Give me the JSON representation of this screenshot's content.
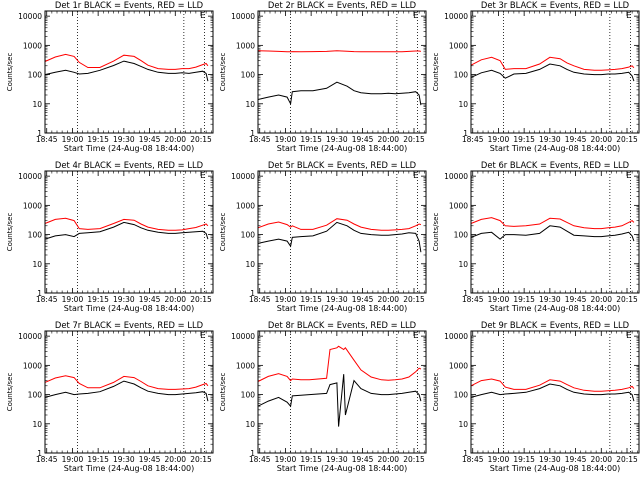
{
  "figure": {
    "xlabel": "Start Time (24-Aug-08 18:44:00)",
    "ylabel": "Counts/sec",
    "x_tick_labels": [
      "18:45",
      "19:00",
      "19:15",
      "19:30",
      "19:45",
      "20:00",
      "20:15"
    ],
    "y_tick_labels": [
      "1",
      "10",
      "100",
      "1000",
      "10000"
    ],
    "marker_labels": [
      "E"
    ],
    "colors": {
      "events": "#000000",
      "lld": "#ff0000",
      "axes": "#000000",
      "background": "#ffffff"
    }
  },
  "chart_data": [
    {
      "type": "line",
      "title": "Det 1r BLACK = Events, RED = LLD",
      "xlabel": "Start Time (24-Aug-08 18:44:00)",
      "ylabel": "Counts/sec",
      "x_unit": "minutes since 18:44:00",
      "xlim": [
        0,
        98
      ],
      "ylim": [
        1,
        15000
      ],
      "yscale": "log",
      "x": [
        0,
        6,
        12,
        17,
        20,
        25,
        32,
        40,
        46,
        52,
        56,
        60,
        66,
        72,
        76,
        80,
        84,
        88,
        92,
        94,
        95
      ],
      "vlines": [
        19,
        81,
        93
      ],
      "marker_label": "E",
      "marker_x": 92,
      "series": [
        {
          "name": "Events",
          "color": "#000000",
          "values": [
            100,
            120,
            140,
            120,
            105,
            110,
            140,
            205,
            290,
            240,
            190,
            150,
            120,
            110,
            110,
            115,
            110,
            120,
            130,
            110,
            60
          ]
        },
        {
          "name": "LLD",
          "color": "#ff0000",
          "values": [
            280,
            400,
            490,
            420,
            260,
            175,
            175,
            290,
            460,
            420,
            300,
            210,
            160,
            150,
            150,
            160,
            160,
            180,
            220,
            240,
            200
          ]
        }
      ]
    },
    {
      "type": "line",
      "title": "Det 2r BLACK = Events, RED = LLD",
      "xlabel": "Start Time (24-Aug-08 18:44:00)",
      "ylabel": "Counts/sec",
      "x_unit": "minutes since 18:44:00",
      "xlim": [
        0,
        98
      ],
      "ylim": [
        1,
        15000
      ],
      "yscale": "log",
      "x": [
        0,
        6,
        12,
        17,
        19,
        20,
        25,
        32,
        40,
        46,
        52,
        56,
        60,
        66,
        72,
        76,
        80,
        84,
        88,
        92,
        94,
        95
      ],
      "vlines": [
        19,
        81,
        93
      ],
      "marker_label": "E",
      "marker_x": 92,
      "series": [
        {
          "name": "Events",
          "color": "#000000",
          "values": [
            14,
            17,
            20,
            17,
            10,
            26,
            28,
            28,
            34,
            55,
            40,
            28,
            24,
            22,
            22,
            23,
            22,
            23,
            24,
            26,
            20,
            9
          ]
        },
        {
          "name": "LLD",
          "color": "#ff0000",
          "values": [
            650,
            640,
            620,
            600,
            600,
            610,
            600,
            610,
            620,
            650,
            630,
            610,
            600,
            600,
            600,
            600,
            600,
            600,
            620,
            640,
            640,
            620
          ]
        }
      ]
    },
    {
      "type": "line",
      "title": "Det 3r BLACK = Events, RED = LLD",
      "xlabel": "Start Time (24-Aug-08 18:44:00)",
      "ylabel": "Counts/sec",
      "x_unit": "minutes since 18:44:00",
      "xlim": [
        0,
        98
      ],
      "ylim": [
        1,
        15000
      ],
      "yscale": "log",
      "x": [
        0,
        6,
        12,
        17,
        20,
        25,
        32,
        40,
        46,
        52,
        56,
        60,
        66,
        72,
        76,
        80,
        84,
        88,
        92,
        94,
        95
      ],
      "vlines": [
        19,
        81,
        93
      ],
      "marker_label": "E",
      "marker_x": 92,
      "series": [
        {
          "name": "Events",
          "color": "#000000",
          "values": [
            80,
            115,
            140,
            110,
            75,
            105,
            110,
            150,
            230,
            200,
            150,
            120,
            105,
            100,
            100,
            105,
            105,
            110,
            120,
            90,
            60
          ]
        },
        {
          "name": "LLD",
          "color": "#ff0000",
          "values": [
            210,
            320,
            390,
            300,
            150,
            160,
            160,
            230,
            390,
            350,
            250,
            200,
            150,
            140,
            140,
            145,
            150,
            160,
            180,
            200,
            170
          ]
        }
      ]
    },
    {
      "type": "line",
      "title": "Det 4r BLACK = Events, RED = LLD",
      "xlabel": "Start Time (24-Aug-08 18:44:00)",
      "ylabel": "Counts/sec",
      "x_unit": "minutes since 18:44:00",
      "xlim": [
        0,
        98
      ],
      "ylim": [
        1,
        15000
      ],
      "yscale": "log",
      "x": [
        0,
        6,
        12,
        17,
        20,
        25,
        32,
        40,
        46,
        52,
        56,
        60,
        66,
        72,
        76,
        80,
        84,
        88,
        92,
        94,
        95
      ],
      "vlines": [
        19,
        81,
        93
      ],
      "marker_label": "E",
      "marker_x": 92,
      "series": [
        {
          "name": "Events",
          "color": "#000000",
          "values": [
            70,
            90,
            100,
            85,
            110,
            115,
            125,
            180,
            260,
            220,
            170,
            140,
            120,
            110,
            110,
            115,
            120,
            125,
            130,
            110,
            70
          ]
        },
        {
          "name": "LLD",
          "color": "#ff0000",
          "values": [
            240,
            330,
            360,
            300,
            160,
            150,
            160,
            240,
            330,
            310,
            230,
            180,
            150,
            140,
            140,
            145,
            160,
            175,
            210,
            230,
            200
          ]
        }
      ]
    },
    {
      "type": "line",
      "title": "Det 5r BLACK = Events, RED = LLD",
      "xlabel": "Start Time (24-Aug-08 18:44:00)",
      "ylabel": "Counts/sec",
      "x_unit": "minutes since 18:44:00",
      "xlim": [
        0,
        98
      ],
      "ylim": [
        1,
        15000
      ],
      "yscale": "log",
      "x": [
        0,
        6,
        12,
        17,
        19,
        20,
        25,
        32,
        40,
        46,
        52,
        56,
        60,
        66,
        72,
        76,
        80,
        84,
        88,
        92,
        94,
        95
      ],
      "vlines": [
        19,
        81,
        93
      ],
      "marker_label": "E",
      "marker_x": 92,
      "series": [
        {
          "name": "Events",
          "color": "#000000",
          "values": [
            50,
            60,
            70,
            60,
            40,
            80,
            85,
            90,
            130,
            260,
            200,
            140,
            110,
            100,
            95,
            95,
            100,
            105,
            115,
            110,
            60,
            25
          ]
        },
        {
          "name": "LLD",
          "color": "#ff0000",
          "values": [
            170,
            230,
            270,
            220,
            180,
            200,
            150,
            150,
            210,
            350,
            310,
            230,
            180,
            150,
            140,
            140,
            145,
            150,
            160,
            200,
            230,
            220
          ]
        }
      ]
    },
    {
      "type": "line",
      "title": "Det 6r BLACK = Events, RED = LLD",
      "xlabel": "Start Time (24-Aug-08 18:44:00)",
      "ylabel": "Counts/sec",
      "x_unit": "minutes since 18:44:00",
      "xlim": [
        0,
        98
      ],
      "ylim": [
        1,
        15000
      ],
      "yscale": "log",
      "x": [
        0,
        6,
        12,
        17,
        20,
        25,
        32,
        40,
        46,
        52,
        56,
        60,
        66,
        72,
        76,
        80,
        84,
        88,
        92,
        94,
        95
      ],
      "vlines": [
        19,
        81,
        93
      ],
      "marker_label": "E",
      "marker_x": 92,
      "series": [
        {
          "name": "Events",
          "color": "#000000",
          "values": [
            80,
            110,
            120,
            70,
            100,
            100,
            95,
            110,
            200,
            180,
            130,
            95,
            90,
            85,
            85,
            90,
            95,
            105,
            120,
            90,
            60
          ]
        },
        {
          "name": "LLD",
          "color": "#ff0000",
          "values": [
            240,
            330,
            380,
            300,
            200,
            190,
            200,
            230,
            360,
            340,
            260,
            200,
            170,
            160,
            160,
            170,
            180,
            200,
            260,
            300,
            260
          ]
        }
      ]
    },
    {
      "type": "line",
      "title": "Det 7r BLACK = Events, RED = LLD",
      "xlabel": "Start Time (24-Aug-08 18:44:00)",
      "ylabel": "Counts/sec",
      "x_unit": "minutes since 18:44:00",
      "xlim": [
        0,
        98
      ],
      "ylim": [
        1,
        15000
      ],
      "yscale": "log",
      "x": [
        0,
        6,
        12,
        17,
        20,
        25,
        32,
        40,
        46,
        52,
        56,
        60,
        66,
        72,
        76,
        80,
        84,
        88,
        92,
        94,
        95
      ],
      "vlines": [
        19,
        81,
        93
      ],
      "marker_label": "E",
      "marker_x": 92,
      "series": [
        {
          "name": "Events",
          "color": "#000000",
          "values": [
            80,
            100,
            120,
            100,
            105,
            110,
            125,
            190,
            290,
            230,
            170,
            130,
            110,
            100,
            100,
            105,
            110,
            115,
            125,
            110,
            60
          ]
        },
        {
          "name": "LLD",
          "color": "#ff0000",
          "values": [
            260,
            370,
            440,
            380,
            240,
            170,
            170,
            260,
            420,
            380,
            280,
            200,
            160,
            150,
            150,
            155,
            160,
            180,
            220,
            240,
            200
          ]
        }
      ]
    },
    {
      "type": "line",
      "title": "Det 8r BLACK = Events, RED = LLD",
      "xlabel": "Start Time (24-Aug-08 18:44:00)",
      "ylabel": "Counts/sec",
      "x_unit": "minutes since 18:44:00",
      "xlim": [
        0,
        98
      ],
      "ylim": [
        1,
        15000
      ],
      "yscale": "log",
      "x": [
        0,
        6,
        12,
        17,
        19,
        20,
        25,
        30,
        40,
        42,
        46,
        47,
        50,
        51,
        56,
        60,
        66,
        72,
        76,
        80,
        84,
        88,
        92,
        94,
        95
      ],
      "vlines": [
        19,
        81,
        93
      ],
      "marker_label": "E",
      "marker_x": 92,
      "series": [
        {
          "name": "Events",
          "color": "#000000",
          "values": [
            40,
            60,
            80,
            55,
            40,
            90,
            95,
            100,
            110,
            220,
            250,
            8,
            500,
            20,
            300,
            160,
            110,
            100,
            100,
            105,
            110,
            120,
            130,
            100,
            60
          ]
        },
        {
          "name": "LLD",
          "color": "#ff0000",
          "values": [
            280,
            420,
            520,
            420,
            300,
            340,
            320,
            320,
            360,
            3500,
            4000,
            4500,
            3500,
            4000,
            1500,
            700,
            400,
            320,
            310,
            320,
            340,
            400,
            600,
            800,
            750
          ]
        }
      ]
    },
    {
      "type": "line",
      "title": "Det 9r BLACK = Events, RED = LLD",
      "xlabel": "Start Time (24-Aug-08 18:44:00)",
      "ylabel": "Counts/sec",
      "x_unit": "minutes since 18:44:00",
      "xlim": [
        0,
        98
      ],
      "ylim": [
        1,
        15000
      ],
      "yscale": "log",
      "x": [
        0,
        6,
        12,
        17,
        20,
        25,
        32,
        40,
        46,
        52,
        56,
        60,
        66,
        72,
        76,
        80,
        84,
        88,
        92,
        94,
        95
      ],
      "vlines": [
        19,
        81,
        93
      ],
      "marker_label": "E",
      "marker_x": 92,
      "series": [
        {
          "name": "Events",
          "color": "#000000",
          "values": [
            80,
            100,
            120,
            100,
            105,
            110,
            120,
            160,
            230,
            200,
            150,
            120,
            105,
            100,
            100,
            105,
            105,
            110,
            120,
            100,
            60
          ]
        },
        {
          "name": "LLD",
          "color": "#ff0000",
          "values": [
            200,
            300,
            340,
            290,
            180,
            150,
            150,
            210,
            320,
            290,
            220,
            170,
            140,
            130,
            130,
            135,
            140,
            150,
            170,
            190,
            160
          ]
        }
      ]
    }
  ]
}
